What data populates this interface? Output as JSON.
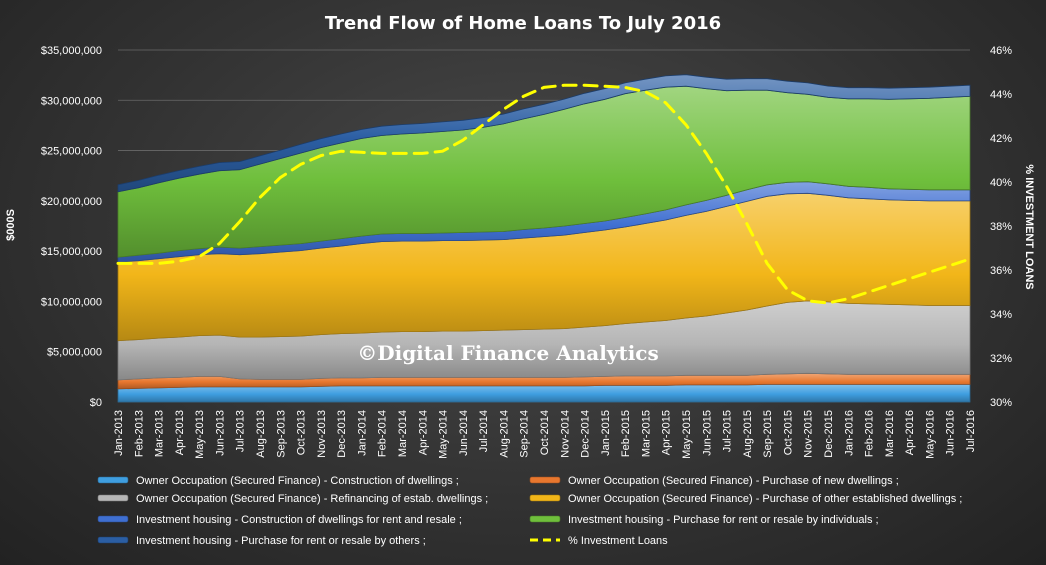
{
  "chart_data": {
    "type": "area",
    "title": "Trend Flow of Home Loans To July 2016",
    "ylabel": "$000S",
    "y2label": "% INVESTMENT LOANS",
    "ylim": [
      0,
      35000000
    ],
    "y2lim": [
      30,
      46
    ],
    "y_ticks": [
      "$0",
      "$5,000,000",
      "$10,000,000",
      "$15,000,000",
      "$20,000,000",
      "$25,000,000",
      "$30,000,000",
      "$35,000,000"
    ],
    "y2_ticks": [
      "30%",
      "32%",
      "34%",
      "36%",
      "38%",
      "40%",
      "42%",
      "44%",
      "46%"
    ],
    "watermark": "©Digital Finance Analytics",
    "categories": [
      "Jan-2013",
      "Feb-2013",
      "Mar-2013",
      "Apr-2013",
      "May-2013",
      "Jun-2013",
      "Jul-2013",
      "Aug-2013",
      "Sep-2013",
      "Oct-2013",
      "Nov-2013",
      "Dec-2013",
      "Jan-2014",
      "Feb-2014",
      "Mar-2014",
      "Apr-2014",
      "May-2014",
      "Jun-2014",
      "Jul-2014",
      "Aug-2014",
      "Sep-2014",
      "Oct-2014",
      "Nov-2014",
      "Dec-2014",
      "Jan-2015",
      "Feb-2015",
      "Mar-2015",
      "Apr-2015",
      "May-2015",
      "Jun-2015",
      "Jul-2015",
      "Aug-2015",
      "Sep-2015",
      "Oct-2015",
      "Nov-2015",
      "Dec-2015",
      "Jan-2016",
      "Feb-2016",
      "Mar-2016",
      "Apr-2016",
      "May-2016",
      "Jun-2016",
      "Jul-2016"
    ],
    "series": [
      {
        "name": "Owner Occupation (Secured Finance) - Construction of dwellings ;",
        "color": "#3f9ee0",
        "values": [
          1300000,
          1350000,
          1400000,
          1450000,
          1500000,
          1500000,
          1500000,
          1500000,
          1500000,
          1500000,
          1550000,
          1600000,
          1600000,
          1600000,
          1600000,
          1600000,
          1600000,
          1600000,
          1600000,
          1600000,
          1600000,
          1600000,
          1600000,
          1600000,
          1650000,
          1650000,
          1650000,
          1650000,
          1700000,
          1700000,
          1700000,
          1700000,
          1750000,
          1750000,
          1750000,
          1750000,
          1750000,
          1750000,
          1750000,
          1750000,
          1750000,
          1750000,
          1750000
        ]
      },
      {
        "name": "Owner Occupation (Secured Finance) - Purchase of new dwellings ;",
        "color": "#e8772e",
        "values": [
          900000,
          950000,
          1000000,
          1000000,
          1050000,
          1050000,
          800000,
          750000,
          750000,
          750000,
          800000,
          800000,
          800000,
          850000,
          850000,
          850000,
          850000,
          850000,
          850000,
          850000,
          850000,
          850000,
          850000,
          900000,
          900000,
          950000,
          950000,
          950000,
          950000,
          950000,
          950000,
          950000,
          1000000,
          1050000,
          1100000,
          1050000,
          1000000,
          1000000,
          1000000,
          1000000,
          1000000,
          1000000,
          1000000
        ]
      },
      {
        "name": "Owner Occupation (Secured Finance) - Refinancing of estab. dwellings ;",
        "color": "#b5b5b5",
        "values": [
          3900000,
          3900000,
          3950000,
          4000000,
          4050000,
          4100000,
          4150000,
          4200000,
          4250000,
          4300000,
          4350000,
          4400000,
          4450000,
          4500000,
          4550000,
          4550000,
          4600000,
          4600000,
          4650000,
          4700000,
          4750000,
          4800000,
          4850000,
          4950000,
          5050000,
          5200000,
          5350000,
          5500000,
          5700000,
          5900000,
          6200000,
          6500000,
          6800000,
          7100000,
          7200000,
          7150000,
          7050000,
          7000000,
          6950000,
          6900000,
          6850000,
          6850000,
          6850000
        ]
      },
      {
        "name": "Owner Occupation (Secured Finance) - Purchase of other established dwellings ;",
        "color": "#f2b619",
        "values": [
          7800000,
          7850000,
          7900000,
          8000000,
          8050000,
          8100000,
          8200000,
          8300000,
          8400000,
          8500000,
          8600000,
          8700000,
          8900000,
          9000000,
          9000000,
          9000000,
          9000000,
          9000000,
          9000000,
          9000000,
          9100000,
          9200000,
          9300000,
          9400000,
          9500000,
          9600000,
          9800000,
          10000000,
          10200000,
          10400000,
          10600000,
          10800000,
          10900000,
          10800000,
          10700000,
          10600000,
          10500000,
          10450000,
          10400000,
          10400000,
          10400000,
          10400000,
          10400000
        ]
      },
      {
        "name": "Investment housing - Construction of dwellings for rent and resale ;",
        "color": "#3f6fd1",
        "values": [
          500000,
          550000,
          550000,
          600000,
          600000,
          650000,
          650000,
          700000,
          700000,
          700000,
          700000,
          750000,
          750000,
          750000,
          750000,
          750000,
          750000,
          800000,
          800000,
          800000,
          850000,
          850000,
          900000,
          900000,
          900000,
          950000,
          950000,
          1000000,
          1050000,
          1100000,
          1100000,
          1150000,
          1150000,
          1150000,
          1150000,
          1150000,
          1150000,
          1150000,
          1100000,
          1100000,
          1100000,
          1100000,
          1100000
        ]
      },
      {
        "name": "Investment housing - Purchase for rent or resale by individuals ;",
        "color": "#6fbf3c",
        "values": [
          6500000,
          6700000,
          7000000,
          7200000,
          7400000,
          7600000,
          7800000,
          8200000,
          8600000,
          9000000,
          9300000,
          9500000,
          9700000,
          9800000,
          9900000,
          10000000,
          10100000,
          10200000,
          10400000,
          10700000,
          11000000,
          11300000,
          11600000,
          11900000,
          12100000,
          12300000,
          12300000,
          12200000,
          11800000,
          11100000,
          10400000,
          9900000,
          9400000,
          8900000,
          8700000,
          8600000,
          8700000,
          8800000,
          8900000,
          9000000,
          9100000,
          9200000,
          9300000
        ]
      },
      {
        "name": "Investment housing - Purchase for rent or resale by others ;",
        "color": "#2b5ea3",
        "values": [
          700000,
          720000,
          740000,
          760000,
          780000,
          800000,
          800000,
          820000,
          840000,
          860000,
          880000,
          900000,
          900000,
          920000,
          930000,
          940000,
          950000,
          960000,
          970000,
          980000,
          990000,
          1000000,
          1020000,
          1040000,
          1060000,
          1080000,
          1100000,
          1120000,
          1140000,
          1150000,
          1150000,
          1150000,
          1150000,
          1150000,
          1130000,
          1110000,
          1100000,
          1100000,
          1100000,
          1100000,
          1100000,
          1100000,
          1100000
        ]
      }
    ],
    "line_series": {
      "name": "% Investment Loans",
      "color": "#ffff00",
      "axis": "right",
      "values": [
        36.3,
        36.3,
        36.3,
        36.4,
        36.6,
        37.2,
        38.2,
        39.3,
        40.2,
        40.8,
        41.2,
        41.4,
        41.35,
        41.3,
        41.3,
        41.3,
        41.4,
        41.9,
        42.6,
        43.3,
        43.9,
        44.3,
        44.4,
        44.4,
        44.35,
        44.3,
        44.1,
        43.6,
        42.6,
        41.3,
        39.8,
        38.1,
        36.3,
        35.1,
        34.6,
        34.5,
        34.7,
        35.0,
        35.3,
        35.6,
        35.9,
        36.2,
        36.5
      ]
    },
    "legend_position": "bottom"
  }
}
